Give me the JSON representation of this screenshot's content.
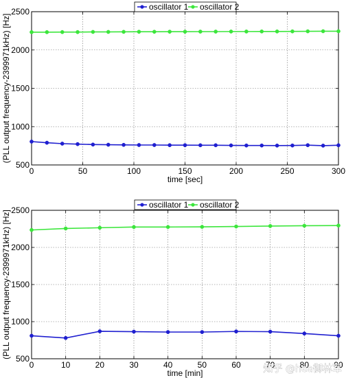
{
  "chart_data": [
    {
      "type": "line",
      "xlabel": "time [sec]",
      "ylabel": "(PLL output frequency-2399971kHz) [Hz]",
      "xlim": [
        0,
        300
      ],
      "ylim": [
        500,
        2500
      ],
      "xticks": [
        0,
        50,
        100,
        150,
        200,
        250,
        300
      ],
      "yticks": [
        500,
        1000,
        1500,
        2000,
        2500
      ],
      "grid": true,
      "legend": "top-center",
      "x": [
        0,
        15,
        30,
        45,
        60,
        75,
        90,
        105,
        120,
        135,
        150,
        165,
        180,
        195,
        210,
        225,
        240,
        255,
        270,
        285,
        300
      ],
      "series": [
        {
          "name": "oscillator 1",
          "color": "#1f1fd0",
          "values": [
            805,
            790,
            778,
            772,
            766,
            764,
            762,
            760,
            760,
            758,
            758,
            757,
            757,
            755,
            754,
            754,
            753,
            754,
            758,
            752,
            757
          ]
        },
        {
          "name": "oscillator 2",
          "color": "#3ce63c",
          "values": [
            2233,
            2233,
            2234,
            2234,
            2236,
            2236,
            2237,
            2238,
            2238,
            2239,
            2239,
            2240,
            2240,
            2241,
            2241,
            2242,
            2242,
            2243,
            2244,
            2245,
            2245
          ]
        }
      ]
    },
    {
      "type": "line",
      "xlabel": "time [min]",
      "ylabel": "(PLL output frequency-2399971kHz) [Hz]",
      "xlim": [
        0,
        90
      ],
      "ylim": [
        500,
        2500
      ],
      "xticks": [
        0,
        10,
        20,
        30,
        40,
        50,
        60,
        70,
        80,
        90
      ],
      "yticks": [
        500,
        1000,
        1500,
        2000,
        2500
      ],
      "grid": true,
      "legend": "top-center",
      "x": [
        0,
        10,
        20,
        30,
        40,
        50,
        60,
        70,
        80,
        90
      ],
      "series": [
        {
          "name": "oscillator 1",
          "color": "#1f1fd0",
          "values": [
            810,
            780,
            870,
            865,
            860,
            860,
            868,
            865,
            840,
            810
          ]
        },
        {
          "name": "oscillator 2",
          "color": "#3ce63c",
          "values": [
            2235,
            2255,
            2265,
            2275,
            2275,
            2277,
            2282,
            2288,
            2292,
            2295
          ]
        }
      ]
    }
  ],
  "watermark": {
    "text": "知乎 @hea御林军"
  }
}
